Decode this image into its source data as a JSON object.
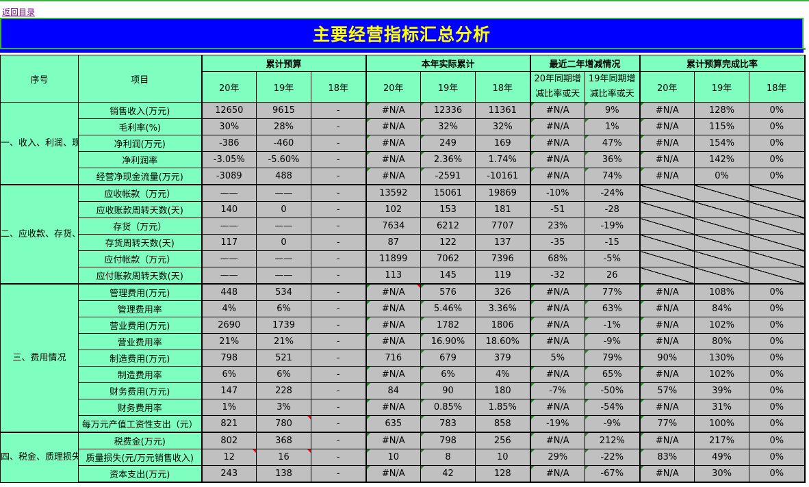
{
  "nav": {
    "back_label": "返回目录"
  },
  "title": "主要经营指标汇总分析",
  "colors": {
    "header_bg": "#7fffbf",
    "value_bg": "#c0c0c0",
    "title_bg": "#0000ff",
    "title_text": "#ffff00",
    "negative": "#ff0000"
  },
  "headers": {
    "seq": "序号",
    "item": "项目",
    "groups": [
      "累计预算",
      "本年实际累计",
      "最近二年增减情况",
      "累计预算完成比率"
    ],
    "budget_years": [
      "20年",
      "19年",
      "18年"
    ],
    "actual_years": [
      "20年",
      "19年",
      "18年"
    ],
    "change_cols": [
      "20年同期增减比率或天",
      "19年同期增减比率或天"
    ],
    "ratio_years": [
      "20年",
      "19年",
      "18年"
    ]
  },
  "sections": [
    {
      "label": "一、收入、利润、现金流情况",
      "rows": [
        {
          "item": "销售收入(万元)",
          "b20": "12650",
          "b19": "9615",
          "b18": "-",
          "a20": "#N/A",
          "a19": "12336",
          "a18": "11361",
          "c20": "#N/A",
          "c19": "9%",
          "r20": "#N/A",
          "r19": "128%",
          "r18": "0%"
        },
        {
          "item": "毛利率(%)",
          "b20": "30%",
          "b19": "28%",
          "b18": "-",
          "a20": "#N/A",
          "a19": "32%",
          "a18": "32%",
          "c20": "#N/A",
          "c19": "1%",
          "r20": "#N/A",
          "r19": "115%",
          "r18": "0%"
        },
        {
          "item": "净利润(万元)",
          "b20": "-386",
          "b19": "-460",
          "b18": "-",
          "a20": "#N/A",
          "a19": "249",
          "a18": "169",
          "c20": "#N/A",
          "c19": "47%",
          "r20": "#N/A",
          "r19": "154%",
          "r18": "0%"
        },
        {
          "item": "净利润率",
          "b20": "-3.05%",
          "b19": "-5.60%",
          "b18": "-",
          "a20": "#N/A",
          "a19": "2.36%",
          "a18": "1.74%",
          "c20": "#N/A",
          "c19": "36%",
          "r20": "#N/A",
          "r19": "142%",
          "r18": "0%"
        },
        {
          "item": "经营净现金流量(万元)",
          "b20": "-3089",
          "b19": "488",
          "b18": "-",
          "a20": "#N/A",
          "a19": "-2591",
          "a18": "-10161",
          "c20": "#N/A",
          "c19": "74%",
          "r20": "#N/A",
          "r19": "0%",
          "r18": "0%"
        }
      ]
    },
    {
      "label": "二、应收款、存货、应付款情况",
      "rows": [
        {
          "item": "应收帐款（万元）",
          "b20": "——",
          "b19": "——",
          "b18": "-",
          "a20": "13592",
          "a19": "15061",
          "a18": "19869",
          "c20": "-10%",
          "c19": "-24%"
        },
        {
          "item": "应收账款周转天数(天)",
          "b20": "140",
          "b19": "0",
          "b18": "-",
          "a20": "102",
          "a19": "153",
          "a18": "181",
          "c20": "-51",
          "c19": "-28"
        },
        {
          "item": "存货（万元）",
          "b20": "——",
          "b19": "——",
          "b18": "-",
          "a20": "7634",
          "a19": "6212",
          "a18": "7707",
          "c20": "23%",
          "c19": "-19%"
        },
        {
          "item": "存货周转天数(天)",
          "b20": "117",
          "b19": "0",
          "b18": "-",
          "a20": "87",
          "a19": "122",
          "a18": "137",
          "c20": "-35",
          "c19": "-15"
        },
        {
          "item": "应付帐款（万元）",
          "b20": "——",
          "b19": "——",
          "b18": "-",
          "a20": "11899",
          "a19": "7062",
          "a18": "7396",
          "c20": "68%",
          "c19": "-5%"
        },
        {
          "item": "应付账款周转天数(天)",
          "b20": "——",
          "b19": "——",
          "b18": "-",
          "a20": "113",
          "a19": "145",
          "a18": "119",
          "c20": "-32",
          "c19": "26"
        }
      ]
    },
    {
      "label": "三、费用情况",
      "rows": [
        {
          "item": "管理费用(万元)",
          "b20": "448",
          "b19": "534",
          "b18": "-",
          "a20": "#N/A",
          "a19": "576",
          "a18": "326",
          "c20": "#N/A",
          "c19": "77%",
          "r20": "#N/A",
          "r19": "108%",
          "r18": "0%"
        },
        {
          "item": "管理费用率",
          "b20": "4%",
          "b19": "6%",
          "b18": "-",
          "a20": "#N/A",
          "a19": "5.46%",
          "a18": "3.36%",
          "c20": "#N/A",
          "c19": "63%",
          "r20": "#N/A",
          "r19": "84%",
          "r18": "0%"
        },
        {
          "item": "营业费用(万元)",
          "b20": "2690",
          "b19": "1739",
          "b18": "-",
          "a20": "#N/A",
          "a19": "1782",
          "a18": "1806",
          "c20": "#N/A",
          "c19": "-1%",
          "r20": "#N/A",
          "r19": "102%",
          "r18": "0%"
        },
        {
          "item": "营业费用率",
          "b20": "21%",
          "b19": "21%",
          "b18": "-",
          "a20": "#N/A",
          "a19": "16.90%",
          "a18": "18.60%",
          "c20": "#N/A",
          "c19": "-9%",
          "r20": "#N/A",
          "r19": "80%",
          "r18": "0%"
        },
        {
          "item": "制造费用(万元)",
          "b20": "798",
          "b19": "521",
          "b18": "-",
          "a20": "716",
          "a19": "679",
          "a18": "379",
          "c20": "5%",
          "c19": "79%",
          "r20": "90%",
          "r19": "130%",
          "r18": "0%"
        },
        {
          "item": "制造费用率",
          "b20": "6%",
          "b19": "6%",
          "b18": "-",
          "a20": "#N/A",
          "a19": "6%",
          "a18": "4%",
          "c20": "#N/A",
          "c19": "65%",
          "r20": "#N/A",
          "r19": "102%",
          "r18": "0%"
        },
        {
          "item": "财务费用(万元)",
          "b20": "147",
          "b19": "228",
          "b18": "-",
          "a20": "84",
          "a19": "90",
          "a18": "180",
          "c20": "-7%",
          "c19": "-50%",
          "r20": "57%",
          "r19": "39%",
          "r18": "0%"
        },
        {
          "item": "财务费用率",
          "b20": "1%",
          "b19": "3%",
          "b18": "-",
          "a20": "#N/A",
          "a19": "0.85%",
          "a18": "1.85%",
          "c20": "#N/A",
          "c19": "-54%",
          "r20": "#N/A",
          "r19": "31%",
          "r18": "0%"
        },
        {
          "item": "每万元产值工资性支出（元）",
          "b20": "821",
          "b19": "780",
          "b18": "-",
          "a20": "635",
          "a19": "783",
          "a18": "858",
          "c20": "-19%",
          "c19": "-9%",
          "r20": "77%",
          "r19": "100%",
          "r18": "0%"
        }
      ]
    },
    {
      "label": "四、税金、质理损失、资本支出情况",
      "rows": [
        {
          "item": "税费金(万元)",
          "b20": "802",
          "b19": "368",
          "b18": "-",
          "a20": "#N/A",
          "a19": "798",
          "a18": "256",
          "c20": "#N/A",
          "c19": "212%",
          "r20": "#N/A",
          "r19": "217%",
          "r18": "0%"
        },
        {
          "item": "质量损失(元/万元销售收入)",
          "b20": "12",
          "b19": "16",
          "b18": "-",
          "a20": "10",
          "a19": "8",
          "a18": "10",
          "c20": "29%",
          "c19": "-22%",
          "r20": "83%",
          "r19": "49%",
          "r18": "0%"
        },
        {
          "item": "资本支出(万元)",
          "b20": "243",
          "b19": "138",
          "b18": "-",
          "a20": "#N/A",
          "a19": "42",
          "a18": "128",
          "c20": "#N/A",
          "c19": "-67%",
          "r20": "#N/A",
          "r19": "30%",
          "r18": "0%"
        }
      ]
    }
  ]
}
